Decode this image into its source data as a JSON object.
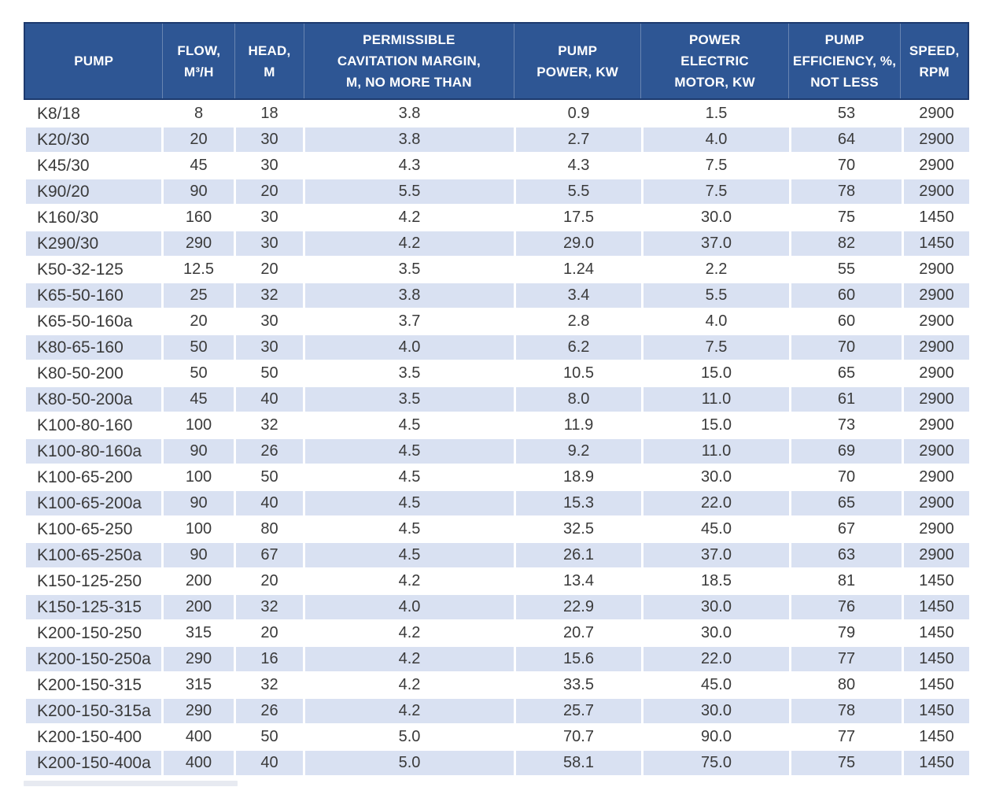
{
  "colors": {
    "header_bg": "#2e5694",
    "header_border": "#1d3a6e",
    "alt_row_bg": "#d9e1f2",
    "row_bg": "#ffffff",
    "body_text": "#3a3a3a",
    "header_text": "#ffffff"
  },
  "chart_data": {
    "type": "table",
    "columns": [
      "PUMP",
      "FLOW, M³/H",
      "HEAD, M",
      "PERMISSIBLE CAVITATION MARGIN, M, NO MORE THAN",
      "PUMP POWER, KW",
      "POWER ELECTRIC MOTOR, KW",
      "PUMP EFFICIENCY, %, NOT LESS",
      "SPEED, RPM"
    ],
    "column_lines": [
      [
        "PUMP"
      ],
      [
        "FLOW,",
        "M³/H"
      ],
      [
        "HEAD,",
        "M"
      ],
      [
        "PERMISSIBLE",
        "CAVITATION MARGIN,",
        "M, NO MORE THAN"
      ],
      [
        "PUMP",
        "POWER, KW"
      ],
      [
        "POWER",
        "ELECTRIC",
        "MOTOR, KW"
      ],
      [
        "PUMP",
        "EFFICIENCY, %,",
        "NOT LESS"
      ],
      [
        "SPEED,",
        "RPM"
      ]
    ],
    "rows": [
      [
        "K8/18",
        "8",
        "18",
        "3.8",
        "0.9",
        "1.5",
        "53",
        "2900"
      ],
      [
        "K20/30",
        "20",
        "30",
        "3.8",
        "2.7",
        "4.0",
        "64",
        "2900"
      ],
      [
        "K45/30",
        "45",
        "30",
        "4.3",
        "4.3",
        "7.5",
        "70",
        "2900"
      ],
      [
        "K90/20",
        "90",
        "20",
        "5.5",
        "5.5",
        "7.5",
        "78",
        "2900"
      ],
      [
        "K160/30",
        "160",
        "30",
        "4.2",
        "17.5",
        "30.0",
        "75",
        "1450"
      ],
      [
        "K290/30",
        "290",
        "30",
        "4.2",
        "29.0",
        "37.0",
        "82",
        "1450"
      ],
      [
        "K50-32-125",
        "12.5",
        "20",
        "3.5",
        "1.24",
        "2.2",
        "55",
        "2900"
      ],
      [
        "K65-50-160",
        "25",
        "32",
        "3.8",
        "3.4",
        "5.5",
        "60",
        "2900"
      ],
      [
        "K65-50-160a",
        "20",
        "30",
        "3.7",
        "2.8",
        "4.0",
        "60",
        "2900"
      ],
      [
        "K80-65-160",
        "50",
        "30",
        "4.0",
        "6.2",
        "7.5",
        "70",
        "2900"
      ],
      [
        "K80-50-200",
        "50",
        "50",
        "3.5",
        "10.5",
        "15.0",
        "65",
        "2900"
      ],
      [
        "K80-50-200a",
        "45",
        "40",
        "3.5",
        "8.0",
        "11.0",
        "61",
        "2900"
      ],
      [
        "K100-80-160",
        "100",
        "32",
        "4.5",
        "11.9",
        "15.0",
        "73",
        "2900"
      ],
      [
        "K100-80-160a",
        "90",
        "26",
        "4.5",
        "9.2",
        "11.0",
        "69",
        "2900"
      ],
      [
        "K100-65-200",
        "100",
        "50",
        "4.5",
        "18.9",
        "30.0",
        "70",
        "2900"
      ],
      [
        "K100-65-200a",
        "90",
        "40",
        "4.5",
        "15.3",
        "22.0",
        "65",
        "2900"
      ],
      [
        "K100-65-250",
        "100",
        "80",
        "4.5",
        "32.5",
        "45.0",
        "67",
        "2900"
      ],
      [
        "K100-65-250a",
        "90",
        "67",
        "4.5",
        "26.1",
        "37.0",
        "63",
        "2900"
      ],
      [
        "K150-125-250",
        "200",
        "20",
        "4.2",
        "13.4",
        "18.5",
        "81",
        "1450"
      ],
      [
        "K150-125-315",
        "200",
        "32",
        "4.0",
        "22.9",
        "30.0",
        "76",
        "1450"
      ],
      [
        "K200-150-250",
        "315",
        "20",
        "4.2",
        "20.7",
        "30.0",
        "79",
        "1450"
      ],
      [
        "K200-150-250a",
        "290",
        "16",
        "4.2",
        "15.6",
        "22.0",
        "77",
        "1450"
      ],
      [
        "K200-150-315",
        "315",
        "32",
        "4.2",
        "33.5",
        "45.0",
        "80",
        "1450"
      ],
      [
        "K200-150-315a",
        "290",
        "26",
        "4.2",
        "25.7",
        "30.0",
        "78",
        "1450"
      ],
      [
        "K200-150-400",
        "400",
        "50",
        "5.0",
        "70.7",
        "90.0",
        "77",
        "1450"
      ],
      [
        "K200-150-400a",
        "400",
        "40",
        "5.0",
        "58.1",
        "75.0",
        "75",
        "1450"
      ]
    ]
  }
}
